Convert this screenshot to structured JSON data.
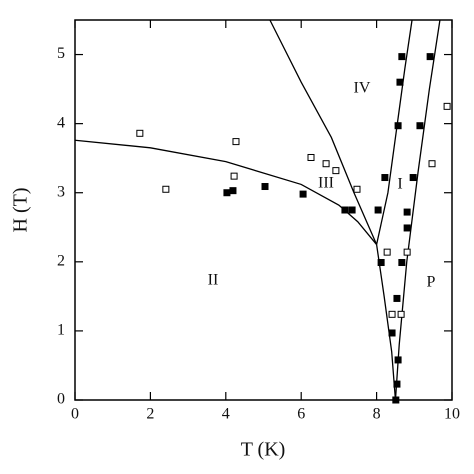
{
  "chart_data": {
    "type": "scatter",
    "xlabel": "T (K)",
    "ylabel": "H (T)",
    "xlim": [
      0,
      10
    ],
    "ylim": [
      0,
      5.5
    ],
    "xticks": [
      0,
      2,
      4,
      6,
      8,
      10
    ],
    "yticks": [
      0,
      1,
      2,
      3,
      4,
      5
    ],
    "series": [
      {
        "color": "#000000",
        "filled": true,
        "x": [
          4.03,
          4.19,
          5.04,
          6.05,
          7.16,
          7.35,
          8.04,
          8.12,
          8.22,
          8.67,
          8.62,
          8.57,
          8.54,
          8.57,
          8.54,
          8.51,
          8.41,
          8.67,
          8.81,
          8.81,
          8.97,
          9.15,
          9.42
        ],
        "values": [
          3.0,
          3.03,
          3.09,
          2.98,
          2.75,
          2.75,
          2.75,
          1.99,
          3.22,
          4.97,
          4.6,
          3.97,
          1.47,
          0.58,
          0.23,
          0.0,
          0.97,
          1.99,
          2.49,
          2.72,
          3.22,
          3.97,
          4.97
        ]
      },
      {
        "color": "#000000",
        "filled": false,
        "x": [
          1.72,
          2.41,
          4.27,
          4.22,
          6.26,
          6.66,
          6.92,
          7.48,
          8.28,
          8.41,
          8.65,
          8.81,
          9.47,
          9.87
        ],
        "values": [
          3.86,
          3.05,
          3.74,
          3.24,
          3.51,
          3.42,
          3.32,
          3.05,
          2.14,
          1.24,
          1.24,
          2.14,
          3.42,
          4.25
        ]
      }
    ],
    "lines": [
      {
        "color": "#000000",
        "x": [
          0,
          2,
          4,
          6,
          7,
          7.5,
          8.0
        ],
        "values": [
          3.76,
          3.65,
          3.45,
          3.12,
          2.82,
          2.58,
          2.25
        ]
      },
      {
        "color": "#000000",
        "x": [
          5.17,
          6,
          6.8,
          7.4,
          8.0
        ],
        "values": [
          5.5,
          4.6,
          3.8,
          3.0,
          2.25
        ]
      },
      {
        "color": "#000000",
        "x": [
          8.0,
          8.3,
          8.55,
          8.75,
          8.94
        ],
        "values": [
          2.25,
          3.0,
          4.0,
          4.8,
          5.5
        ]
      },
      {
        "color": "#000000",
        "x": [
          8.0,
          8.2,
          8.4,
          8.5
        ],
        "values": [
          2.25,
          1.5,
          0.7,
          0.0
        ]
      },
      {
        "color": "#000000",
        "x": [
          8.5,
          8.6,
          8.8,
          9.1,
          9.4,
          9.68
        ],
        "values": [
          0.0,
          0.8,
          2.0,
          3.3,
          4.5,
          5.5
        ]
      }
    ],
    "annotations": [
      "II",
      "III",
      "IV",
      "I",
      "P"
    ]
  }
}
